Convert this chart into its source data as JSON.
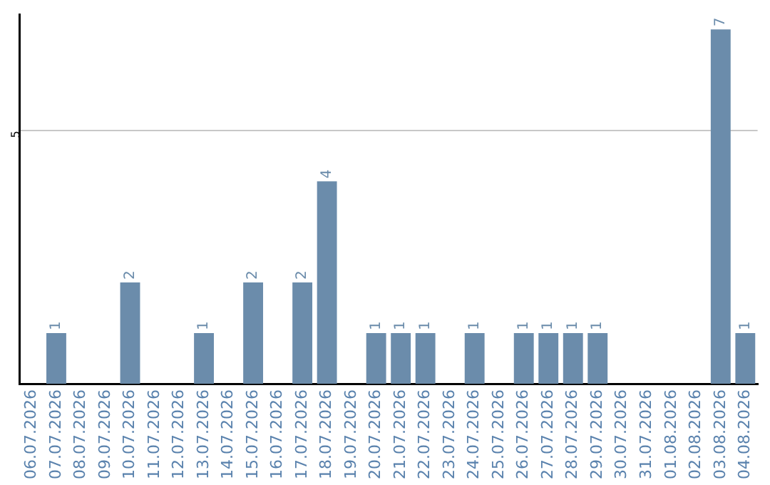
{
  "chart_data": {
    "type": "bar",
    "categories": [
      "06.07.2026",
      "07.07.2026",
      "08.07.2026",
      "09.07.2026",
      "10.07.2026",
      "11.07.2026",
      "12.07.2026",
      "13.07.2026",
      "14.07.2026",
      "15.07.2026",
      "16.07.2026",
      "17.07.2026",
      "18.07.2026",
      "19.07.2026",
      "20.07.2026",
      "21.07.2026",
      "22.07.2026",
      "23.07.2026",
      "24.07.2026",
      "25.07.2026",
      "26.07.2026",
      "27.07.2026",
      "28.07.2026",
      "29.07.2026",
      "30.07.2026",
      "31.07.2026",
      "01.08.2026",
      "02.08.2026",
      "03.08.2026",
      "04.08.2026"
    ],
    "values": [
      0,
      1,
      0,
      0,
      2,
      0,
      0,
      1,
      0,
      2,
      0,
      2,
      4,
      0,
      1,
      1,
      1,
      0,
      1,
      0,
      1,
      1,
      1,
      1,
      0,
      0,
      0,
      0,
      7,
      1
    ],
    "value_labels": [
      null,
      "1",
      null,
      null,
      "2",
      null,
      null,
      "1",
      null,
      "2",
      null,
      "2",
      "4",
      null,
      "1",
      "1",
      "1",
      null,
      "1",
      null,
      "1",
      "1",
      "1",
      "1",
      null,
      null,
      null,
      null,
      "7",
      "1"
    ],
    "color": "#6b8cab",
    "ylim": [
      0,
      7.3
    ],
    "yticks": [
      5
    ],
    "grid": "y",
    "legend": false
  }
}
